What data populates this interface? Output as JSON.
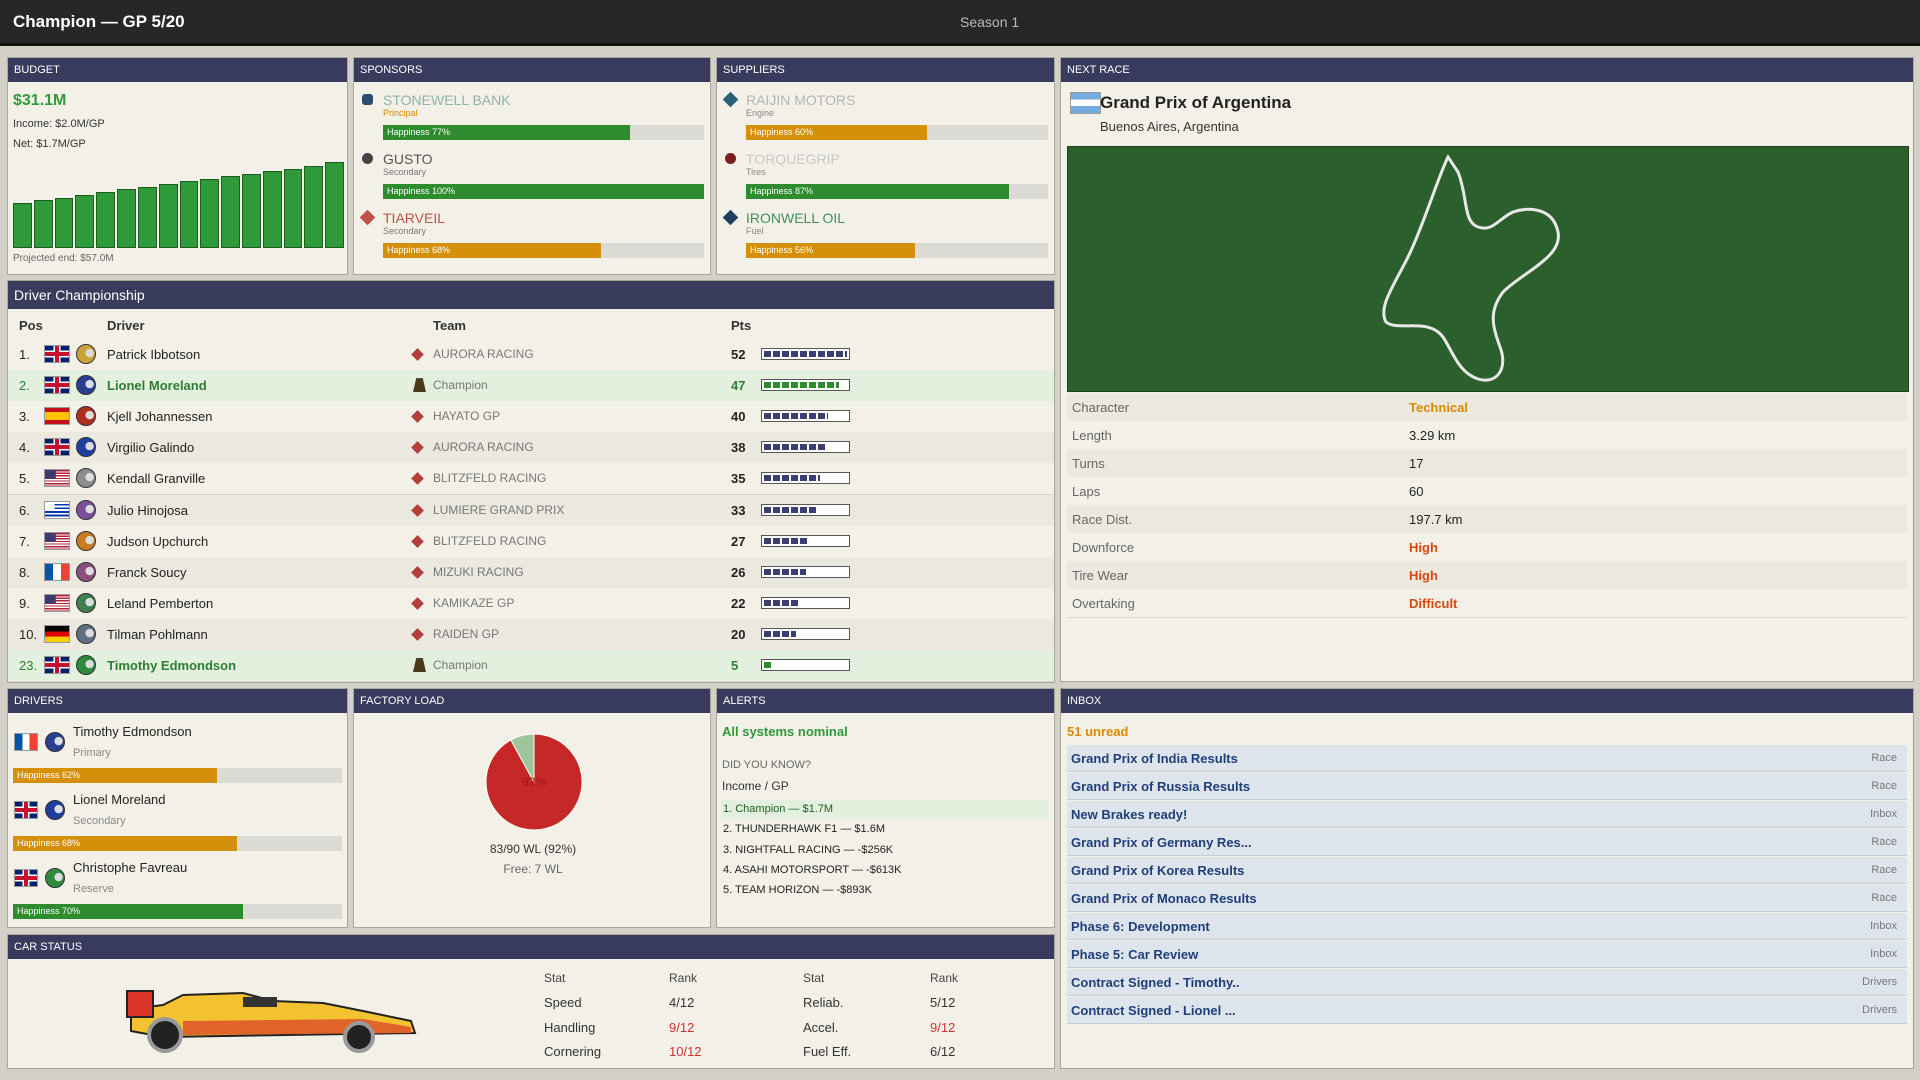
{
  "header": {
    "title": "Champion — GP 5/20",
    "season": "Season 1"
  },
  "budget": {
    "heading": "BUDGET",
    "amount": "$31.1M",
    "income": "Income: $2.0M/GP",
    "net": "Net: $1.7M/GP",
    "projected": "Projected end: $57.0M",
    "color": "#2e9a3a",
    "history": [
      16.2,
      17.2,
      18.2,
      19.2,
      20.2,
      21.2,
      22.2,
      23.2,
      24.1,
      25.0,
      26.0,
      26.9,
      27.8,
      28.7,
      29.8,
      31.1
    ]
  },
  "sponsors": {
    "heading": "SPONSORS",
    "items": [
      {
        "name": "STONEWELL BANK",
        "role": "Principal",
        "name_color": "#8fb3aa",
        "role_color": "#d98a00",
        "happiness": 77,
        "happiness_label": "Happiness 77%",
        "color": "#2e8b2e"
      },
      {
        "name": "GUSTO",
        "role": "Secondary",
        "name_color": "#555555",
        "role_color": "#777777",
        "happiness": 100,
        "happiness_label": "Happiness 100%",
        "color": "#2e8b2e"
      },
      {
        "name": "TIARVEIL",
        "role": "Secondary",
        "name_color": "#c0504d",
        "role_color": "#777777",
        "happiness": 68,
        "happiness_label": "Happiness 68%",
        "color": "#d4900a"
      }
    ]
  },
  "suppliers": {
    "heading": "SUPPLIERS",
    "items": [
      {
        "name": "RAIJIN MOTORS",
        "role": "Engine",
        "name_color": "#b5b5b5",
        "role_color": "#888888",
        "happiness": 60,
        "happiness_label": "Happiness 60%",
        "color": "#d4900a"
      },
      {
        "name": "TORQUEGRIP",
        "role": "Tires",
        "name_color": "#c9c9c9",
        "role_color": "#888888",
        "happiness": 87,
        "happiness_label": "Happiness 87%",
        "color": "#2e8b2e"
      },
      {
        "name": "IRONWELL OIL",
        "role": "Fuel",
        "name_color": "#3f8f5a",
        "role_color": "#888888",
        "happiness": 56,
        "happiness_label": "Happiness 56%",
        "color": "#d4900a"
      }
    ]
  },
  "next_race": {
    "heading": "NEXT RACE",
    "name": "Grand Prix of Argentina",
    "location": "Buenos Aires, Argentina",
    "stats": [
      {
        "label": "Character",
        "value": "Technical",
        "color": "#d98a00"
      },
      {
        "label": "Length",
        "value": "3.29 km"
      },
      {
        "label": "Turns",
        "value": "17"
      },
      {
        "label": "Laps",
        "value": "60"
      },
      {
        "label": "Race Dist.",
        "value": "197.7 km"
      },
      {
        "label": "Downforce",
        "value": "High",
        "color": "#d9480f"
      },
      {
        "label": "Tire Wear",
        "value": "High",
        "color": "#d9480f"
      },
      {
        "label": "Overtaking",
        "value": "Difficult",
        "color": "#d9480f"
      }
    ]
  },
  "championship": {
    "heading": "Driver Championship",
    "columns": [
      "Pos",
      "Driver",
      "Team",
      "Pts"
    ],
    "rows": [
      {
        "pos": "1.",
        "driver": "Patrick Ibbotson",
        "team": "AURORA RACING",
        "pts": 52
      },
      {
        "pos": "2.",
        "driver": "Lionel Moreland",
        "team": "Champion",
        "pts": 47,
        "highlight": true
      },
      {
        "pos": "3.",
        "driver": "Kjell Johannessen",
        "team": "HAYATO GP",
        "pts": 40
      },
      {
        "pos": "4.",
        "driver": "Virgilio Galindo",
        "team": "AURORA RACING",
        "pts": 38
      },
      {
        "pos": "5.",
        "driver": "Kendall Granville",
        "team": "BLITZFELD RACING",
        "pts": 35
      },
      {
        "pos": "6.",
        "driver": "Julio Hinojosa",
        "team": "LUMIERE GRAND PRIX",
        "pts": 33
      },
      {
        "pos": "7.",
        "driver": "Judson Upchurch",
        "team": "BLITZFELD RACING",
        "pts": 27
      },
      {
        "pos": "8.",
        "driver": "Franck Soucy",
        "team": "MIZUKI RACING",
        "pts": 26
      },
      {
        "pos": "9.",
        "driver": "Leland Pemberton",
        "team": "KAMIKAZE GP",
        "pts": 22
      },
      {
        "pos": "10.",
        "driver": "Tilman Pohlmann",
        "team": "RAIDEN GP",
        "pts": 20
      },
      {
        "pos": "23.",
        "driver": "Timothy Edmondson",
        "team": "Champion",
        "pts": 5,
        "highlight": true
      }
    ]
  },
  "drivers": {
    "heading": "DRIVERS",
    "items": [
      {
        "name": "Timothy Edmondson",
        "role": "Primary",
        "happiness": 62,
        "happiness_label": "Happiness 62%",
        "color": "#d4900a"
      },
      {
        "name": "Lionel Moreland",
        "role": "Secondary",
        "happiness": 68,
        "happiness_label": "Happiness 68%",
        "color": "#d4900a"
      },
      {
        "name": "Christophe Favreau",
        "role": "Reserve",
        "happiness": 70,
        "happiness_label": "Happiness 70%",
        "color": "#2e8b2e"
      }
    ]
  },
  "factory": {
    "heading": "FACTORY LOAD",
    "load": 92,
    "load_label": "92%",
    "summary": "83/90 WL (92%)",
    "free": "Free: 7 WL",
    "color": "#c62828",
    "free_color": "#9dc49b"
  },
  "alerts": {
    "heading": "ALERTS",
    "status": "All systems nominal",
    "did_you_know": "DID YOU KNOW?",
    "topic": "Income / GP",
    "items": [
      "1. Champion — $1.7M",
      "2. THUNDERHAWK F1 — $1.6M",
      "3. NIGHTFALL RACING — -$256K",
      "4. ASAHI MOTORSPORT — -$613K",
      "5. TEAM HORIZON — -$893K"
    ]
  },
  "inbox": {
    "heading": "INBOX",
    "unread": "51 unread",
    "items": [
      {
        "title": "Grand Prix of India Results",
        "tag": "Race"
      },
      {
        "title": "Grand Prix of Russia Results",
        "tag": "Race"
      },
      {
        "title": "New Brakes ready!",
        "tag": "Inbox"
      },
      {
        "title": "Grand Prix of Germany Res...",
        "tag": "Race"
      },
      {
        "title": "Grand Prix of Korea Results",
        "tag": "Race"
      },
      {
        "title": "Grand Prix of Monaco Results",
        "tag": "Race"
      },
      {
        "title": "Phase 6: Development",
        "tag": "Inbox"
      },
      {
        "title": "Phase 5: Car Review",
        "tag": "Inbox"
      },
      {
        "title": "Contract Signed - Timothy..",
        "tag": "Drivers"
      },
      {
        "title": "Contract Signed - Lionel ...",
        "tag": "Drivers"
      }
    ]
  },
  "car_status": {
    "heading": "CAR STATUS",
    "columns": [
      "Stat",
      "Rank",
      "Stat",
      "Rank"
    ],
    "rows": [
      [
        {
          "text": "Speed"
        },
        {
          "text": "4/12"
        },
        {
          "text": "Reliab."
        },
        {
          "text": "5/12"
        }
      ],
      [
        {
          "text": "Handling"
        },
        {
          "text": "9/12",
          "color": "#d32f2f"
        },
        {
          "text": "Accel."
        },
        {
          "text": "9/12",
          "color": "#d32f2f"
        }
      ],
      [
        {
          "text": "Cornering"
        },
        {
          "text": "10/12",
          "color": "#d32f2f"
        },
        {
          "text": "Fuel Eff."
        },
        {
          "text": "6/12"
        }
      ]
    ]
  }
}
